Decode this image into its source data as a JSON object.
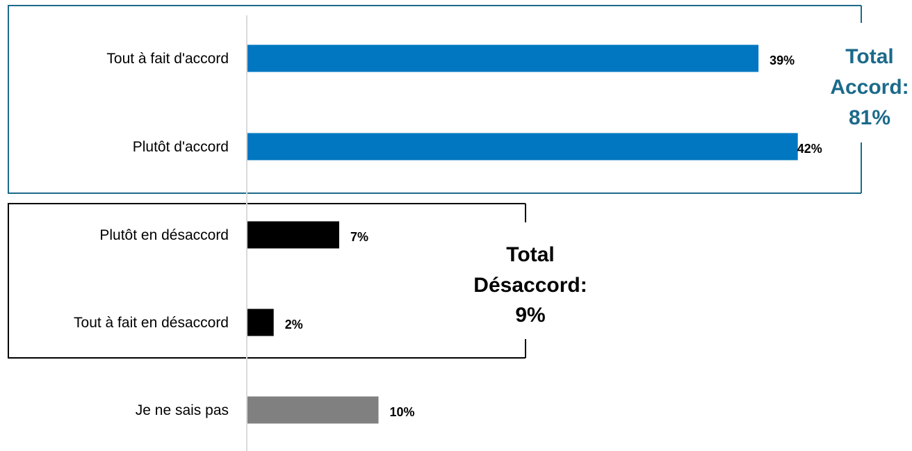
{
  "chart_data": {
    "type": "bar",
    "orientation": "horizontal",
    "categories": [
      "Tout à fait d'accord",
      "Plutôt d'accord",
      "Plutôt en désaccord",
      "Tout à fait en désaccord",
      "Je ne sais pas"
    ],
    "values": [
      39,
      42,
      7,
      2,
      10
    ],
    "value_labels": [
      "39%",
      "42%",
      "7%",
      "2%",
      "10%"
    ],
    "bar_colors": [
      "#0077c0",
      "#0077c0",
      "#000000",
      "#000000",
      "#808080"
    ],
    "xlim": [
      0,
      44
    ],
    "grid": false,
    "groups": [
      {
        "lines": [
          "Total",
          "Accord:",
          "81%"
        ],
        "color": "#1b6a8a",
        "frame_color": "#1b6a8a",
        "categories": [
          0,
          1
        ]
      },
      {
        "lines": [
          "Total",
          "Désaccord:",
          "9%"
        ],
        "color": "#000000",
        "frame_color": "#000000",
        "categories": [
          2,
          3
        ]
      }
    ]
  }
}
